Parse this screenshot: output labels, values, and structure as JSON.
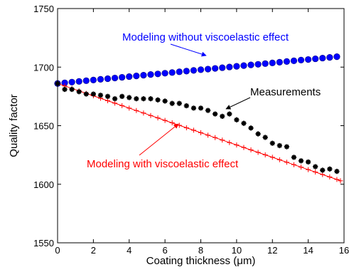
{
  "chart_data": {
    "type": "scatter",
    "xlabel": "Coating thickness (μm)",
    "ylabel": "Quality factor",
    "xlim": [
      0,
      16
    ],
    "ylim": [
      1550,
      1750
    ],
    "xticks": [
      0,
      2,
      4,
      6,
      8,
      10,
      12,
      14,
      16
    ],
    "yticks": [
      1550,
      1600,
      1650,
      1700,
      1750
    ],
    "grid": false,
    "series": [
      {
        "name": "Modeling without viscoelastic effect",
        "color": "#0000ff",
        "marker": "filled-circle",
        "x": [
          0,
          0.4,
          0.8,
          1.2,
          1.6,
          2.0,
          2.4,
          2.8,
          3.2,
          3.6,
          4.0,
          4.4,
          4.8,
          5.2,
          5.6,
          6.0,
          6.4,
          6.8,
          7.2,
          7.6,
          8.0,
          8.4,
          8.8,
          9.2,
          9.6,
          10.0,
          10.4,
          10.8,
          11.2,
          11.6,
          12.0,
          12.4,
          12.8,
          13.2,
          13.6,
          14.0,
          14.4,
          14.8,
          15.2,
          15.6
        ],
        "y": [
          1686,
          1686.6,
          1687.2,
          1687.8,
          1688.4,
          1689.0,
          1689.6,
          1690.1,
          1690.7,
          1691.3,
          1691.9,
          1692.5,
          1693.1,
          1693.7,
          1694.2,
          1694.8,
          1695.4,
          1696.0,
          1696.6,
          1697.2,
          1697.8,
          1698.3,
          1698.9,
          1699.5,
          1700.1,
          1700.7,
          1701.3,
          1701.9,
          1702.4,
          1703.0,
          1703.6,
          1704.2,
          1704.8,
          1705.4,
          1706.0,
          1706.5,
          1707.1,
          1707.7,
          1708.3,
          1708.9
        ]
      },
      {
        "name": "Modeling with viscoelastic effect",
        "color": "#ff0000",
        "marker": "plus",
        "x": [
          0,
          0.4,
          0.8,
          1.2,
          1.6,
          2.0,
          2.4,
          2.8,
          3.2,
          3.6,
          4.0,
          4.4,
          4.8,
          5.2,
          5.6,
          6.0,
          6.4,
          6.8,
          7.2,
          7.6,
          8.0,
          8.4,
          8.8,
          9.2,
          9.6,
          10.0,
          10.4,
          10.8,
          11.2,
          11.6,
          12.0,
          12.4,
          12.8,
          13.2,
          13.6,
          14.0,
          14.4,
          14.8,
          15.2,
          15.6,
          15.8
        ],
        "y": [
          1686,
          1683.9,
          1681.8,
          1679.7,
          1677.6,
          1675.5,
          1673.4,
          1671.3,
          1669.2,
          1667.1,
          1665.0,
          1662.9,
          1660.8,
          1658.7,
          1656.6,
          1654.5,
          1652.4,
          1650.3,
          1648.2,
          1646.1,
          1644.0,
          1641.9,
          1639.8,
          1637.7,
          1635.6,
          1633.5,
          1631.4,
          1629.3,
          1627.2,
          1625.1,
          1623.0,
          1620.9,
          1618.8,
          1616.7,
          1614.6,
          1612.5,
          1610.4,
          1608.3,
          1606.2,
          1604.1,
          1603.0
        ]
      },
      {
        "name": "Measurements",
        "color": "#000000",
        "marker": "asterisk",
        "x": [
          0,
          0.4,
          0.8,
          1.2,
          1.6,
          2.0,
          2.4,
          2.8,
          3.2,
          3.6,
          4.0,
          4.4,
          4.8,
          5.2,
          5.6,
          6.0,
          6.4,
          6.8,
          7.2,
          7.6,
          8.0,
          8.4,
          8.8,
          9.2,
          9.6,
          10.0,
          10.4,
          10.8,
          11.2,
          11.6,
          12.0,
          12.4,
          12.8,
          13.2,
          13.6,
          14.0,
          14.4,
          14.8,
          15.2,
          15.6
        ],
        "y": [
          1686,
          1681,
          1681,
          1679,
          1677,
          1677,
          1676,
          1675,
          1673,
          1675,
          1674,
          1673,
          1673,
          1673,
          1672,
          1671,
          1669,
          1669,
          1667,
          1665,
          1665,
          1663,
          1660,
          1658,
          1660,
          1655,
          1652,
          1648,
          1643,
          1640,
          1635,
          1633,
          1632,
          1623,
          1620,
          1619,
          1615,
          1612,
          1613,
          1611
        ]
      }
    ],
    "annotations": [
      {
        "text": "Modeling without viscoelastic effect",
        "color": "#0000ff"
      },
      {
        "text": "Measurements",
        "color": "#000000"
      },
      {
        "text": "Modeling with viscoelastic effect",
        "color": "#ff0000"
      }
    ]
  }
}
